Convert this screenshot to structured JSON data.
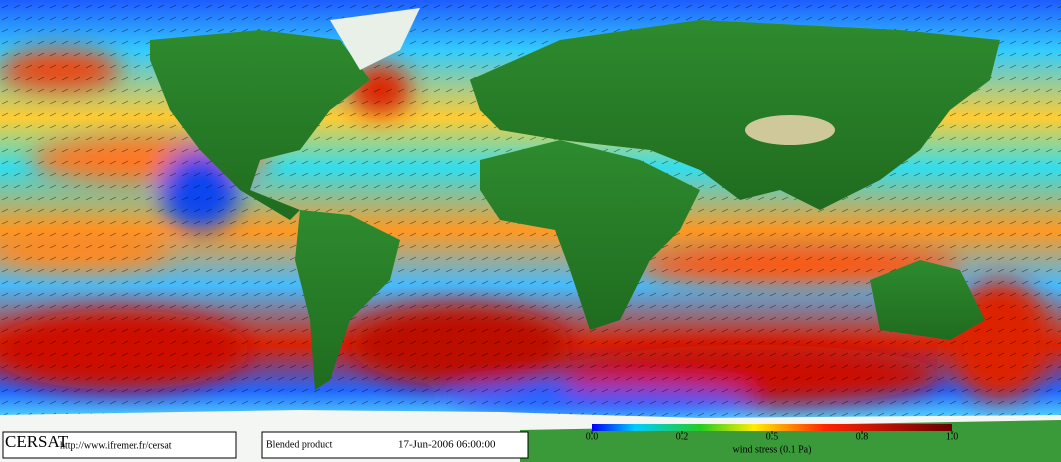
{
  "footer": {
    "logo": "CERSAT",
    "url": "http://www.ifremer.fr/cersat",
    "product": "Blended product",
    "date": "17-Jun-2006 06:00:00"
  },
  "colorbar": {
    "ticks": [
      {
        "value": 0,
        "label": "0.0"
      },
      {
        "value": 0.2,
        "label": "0.2"
      },
      {
        "value": 0.5,
        "label": "0.5"
      },
      {
        "value": 0.8,
        "label": "0.8"
      },
      {
        "value": 1,
        "label": "1.0"
      }
    ],
    "label": "wind stress (0.1 Pa)"
  }
}
